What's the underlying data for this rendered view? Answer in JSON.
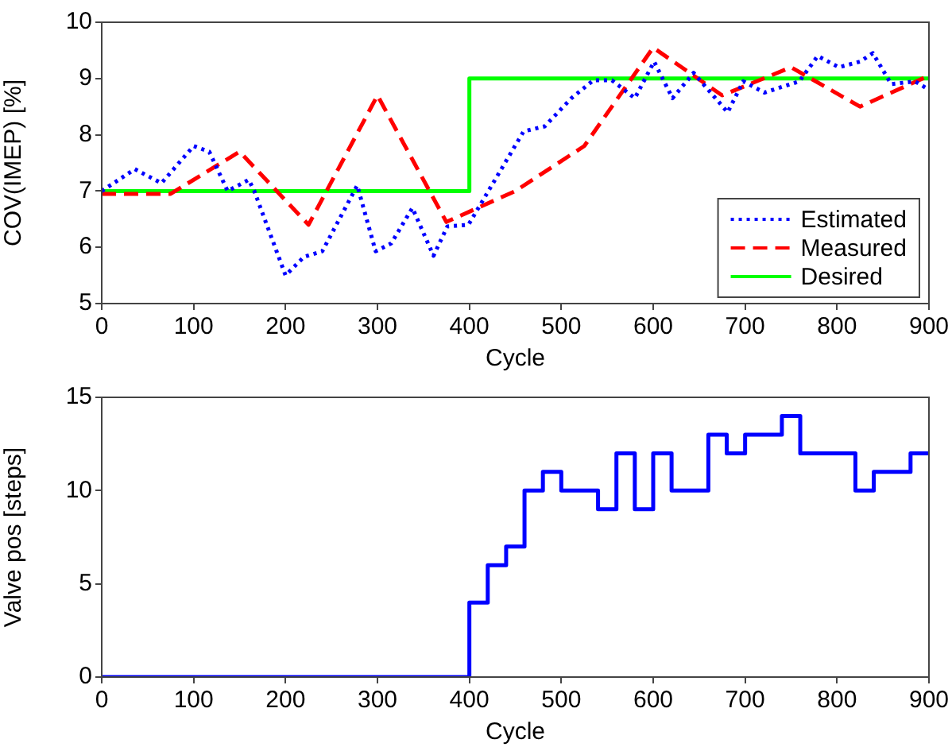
{
  "chart_data": [
    {
      "type": "line",
      "xlabel": "Cycle",
      "ylabel": "COV(IMEP) [%]",
      "xlim": [
        0,
        900
      ],
      "xticks": [
        0,
        100,
        200,
        300,
        400,
        500,
        600,
        700,
        800,
        900
      ],
      "ylim": [
        5,
        10
      ],
      "yticks": [
        5,
        6,
        7,
        8,
        9,
        10
      ],
      "legend": "bottom right",
      "series": [
        {
          "name": "Estimated",
          "color": "#0000ff",
          "line_style": "dotted",
          "x": [
            0,
            36,
            65,
            100,
            117,
            137,
            160,
            166,
            200,
            220,
            240,
            278,
            298,
            315,
            338,
            361,
            376,
            399,
            459,
            482,
            511,
            535,
            555,
            580,
            601,
            621,
            644,
            681,
            698,
            721,
            759,
            779,
            802,
            825,
            839,
            859,
            885,
            900
          ],
          "values": [
            7.0,
            7.39,
            7.14,
            7.8,
            7.7,
            7.0,
            7.2,
            7.0,
            5.5,
            5.83,
            5.93,
            7.1,
            5.93,
            6.07,
            6.7,
            5.85,
            6.37,
            6.4,
            8.06,
            8.15,
            8.65,
            8.97,
            8.97,
            8.65,
            9.3,
            8.65,
            9.1,
            8.4,
            8.95,
            8.75,
            8.95,
            9.4,
            9.2,
            9.3,
            9.45,
            8.9,
            8.95,
            8.8
          ]
        },
        {
          "name": "Measured",
          "color": "#ff0000",
          "line_style": "dashed",
          "x": [
            0,
            75,
            150,
            225,
            300,
            375,
            450,
            525,
            600,
            675,
            750,
            825,
            900
          ],
          "values": [
            6.95,
            6.95,
            7.7,
            6.4,
            8.7,
            6.45,
            7.0,
            7.8,
            9.55,
            8.7,
            9.2,
            8.5,
            9.05
          ]
        },
        {
          "name": "Desired",
          "color": "#00ff00",
          "type": "step",
          "line_style": "solid",
          "x": [
            0,
            400,
            900
          ],
          "values": [
            7,
            9,
            9
          ]
        }
      ]
    },
    {
      "type": "step",
      "xlabel": "Cycle",
      "ylabel": "Valve pos [steps]",
      "xlim": [
        0,
        900
      ],
      "xticks": [
        0,
        100,
        200,
        300,
        400,
        500,
        600,
        700,
        800,
        900
      ],
      "ylim": [
        0,
        15
      ],
      "yticks": [
        0,
        5,
        10,
        15
      ],
      "series": [
        {
          "color": "#0000ff",
          "line_style": "solid",
          "x": [
            0,
            400,
            420,
            440,
            460,
            480,
            500,
            540,
            560,
            580,
            600,
            620,
            660,
            680,
            700,
            740,
            760,
            820,
            840,
            880,
            900
          ],
          "values": [
            0,
            4,
            6,
            7,
            10,
            11,
            10,
            9,
            12,
            9,
            12,
            10,
            13,
            12,
            13,
            14,
            12,
            10,
            11,
            12,
            12
          ]
        }
      ]
    }
  ]
}
